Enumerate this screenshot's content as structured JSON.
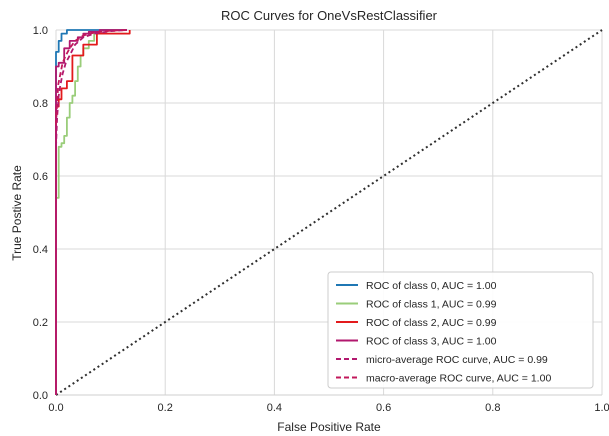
{
  "chart_data": {
    "type": "line",
    "title": "ROC Curves for OneVsRestClassifier",
    "xlabel": "False Positive Rate",
    "ylabel": "True Postive Rate",
    "xlim": [
      0,
      1
    ],
    "ylim": [
      0,
      1
    ],
    "xticks": [
      "0.0",
      "0.2",
      "0.4",
      "0.6",
      "0.8",
      "1.0"
    ],
    "yticks": [
      "0.0",
      "0.2",
      "0.4",
      "0.6",
      "0.8",
      "1.0"
    ],
    "grid": true,
    "legend_position": "lower-right",
    "diagonal": {
      "x": [
        0,
        1
      ],
      "y": [
        0,
        1
      ],
      "color": "#2f2f2f",
      "style": "dotted"
    },
    "series": [
      {
        "name": "ROC of class 0, AUC = 1.00",
        "color": "#1f77b4",
        "style": "solid",
        "x": [
          0,
          0,
          0.005,
          0.005,
          0.01,
          0.01,
          0.02,
          0.02,
          0.05,
          0.05,
          0.13
        ],
        "y": [
          0,
          0.94,
          0.94,
          0.97,
          0.97,
          0.99,
          0.99,
          1.0,
          1.0,
          1.0,
          1.0
        ]
      },
      {
        "name": "ROC of class 1, AUC = 0.99",
        "color": "#9acd7a",
        "style": "solid",
        "x": [
          0,
          0,
          0.005,
          0.005,
          0.01,
          0.01,
          0.015,
          0.015,
          0.02,
          0.02,
          0.025,
          0.025,
          0.03,
          0.03,
          0.035,
          0.035,
          0.04,
          0.04,
          0.045,
          0.045,
          0.05,
          0.05,
          0.06,
          0.06,
          0.07,
          0.07,
          0.13
        ],
        "y": [
          0,
          0.54,
          0.54,
          0.68,
          0.68,
          0.69,
          0.69,
          0.71,
          0.71,
          0.76,
          0.76,
          0.8,
          0.8,
          0.82,
          0.82,
          0.86,
          0.86,
          0.9,
          0.9,
          0.93,
          0.93,
          0.95,
          0.95,
          0.97,
          0.97,
          0.99,
          0.99
        ]
      },
      {
        "name": "ROC of class 2, AUC = 0.99",
        "color": "#e31a1c",
        "style": "solid",
        "x": [
          0,
          0,
          0.005,
          0.005,
          0.01,
          0.01,
          0.02,
          0.02,
          0.03,
          0.03,
          0.05,
          0.05,
          0.075,
          0.075,
          0.135,
          0.135
        ],
        "y": [
          0,
          0.79,
          0.79,
          0.81,
          0.81,
          0.84,
          0.84,
          0.86,
          0.86,
          0.93,
          0.93,
          0.96,
          0.96,
          0.99,
          0.99,
          1.0
        ]
      },
      {
        "name": "ROC of class 3, AUC = 1.00",
        "color": "#b2186e",
        "style": "solid",
        "x": [
          0,
          0,
          0.005,
          0.005,
          0.015,
          0.015,
          0.025,
          0.025,
          0.04,
          0.04,
          0.05,
          0.05,
          0.06,
          0.06,
          0.08,
          0.08,
          0.13
        ],
        "y": [
          0,
          0.9,
          0.9,
          0.91,
          0.91,
          0.95,
          0.95,
          0.97,
          0.97,
          0.98,
          0.98,
          0.99,
          0.99,
          0.995,
          0.995,
          1.0,
          1.0
        ]
      },
      {
        "name": "micro-average ROC curve, AUC = 0.99",
        "color": "#b2186e",
        "style": "dashed",
        "x": [
          0,
          0.002,
          0.005,
          0.008,
          0.012,
          0.018,
          0.025,
          0.035,
          0.05,
          0.07,
          0.1,
          0.13
        ],
        "y": [
          0.68,
          0.76,
          0.82,
          0.85,
          0.88,
          0.91,
          0.93,
          0.96,
          0.98,
          0.99,
          0.997,
          1.0
        ]
      },
      {
        "name": "macro-average ROC curve, AUC = 1.00",
        "color": "#c2185b",
        "style": "dashed",
        "x": [
          0,
          0.002,
          0.004,
          0.008,
          0.012,
          0.018,
          0.025,
          0.035,
          0.05,
          0.07,
          0.1,
          0.13
        ],
        "y": [
          0.74,
          0.8,
          0.85,
          0.88,
          0.91,
          0.93,
          0.95,
          0.97,
          0.985,
          0.993,
          0.998,
          1.0
        ]
      }
    ]
  }
}
